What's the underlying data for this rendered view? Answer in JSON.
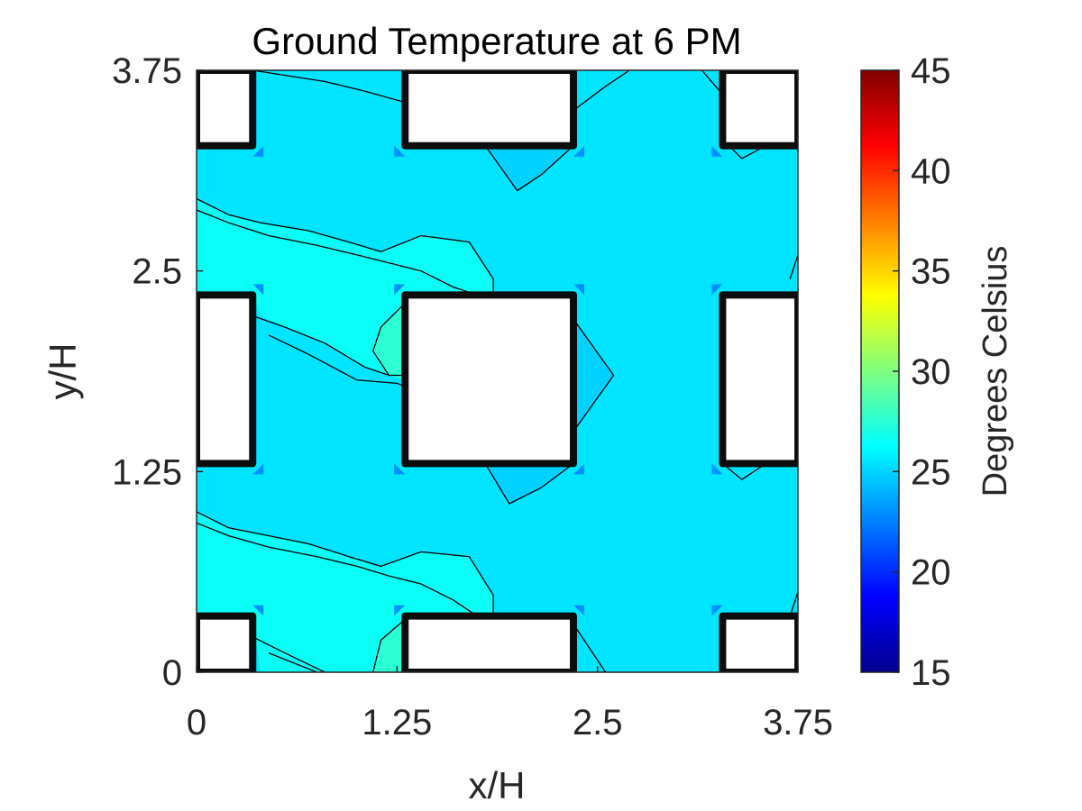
{
  "chart_data": {
    "type": "heatmap",
    "title": "Ground Temperature at 6 PM",
    "xlabel": "x/H",
    "ylabel": "y/H",
    "xlim": [
      0,
      3.75
    ],
    "ylim": [
      0,
      3.75
    ],
    "x_ticks": [
      0,
      1.25,
      2.5,
      3.75
    ],
    "x_tick_labels": [
      "0",
      "1.25",
      "2.5",
      "3.75"
    ],
    "y_ticks": [
      0,
      1.25,
      2.5,
      3.75
    ],
    "y_tick_labels": [
      "0",
      "1.25",
      "2.5",
      "3.75"
    ],
    "colorbar": {
      "label": "Degrees Celsius",
      "range": [
        15,
        45
      ],
      "ticks": [
        15,
        20,
        25,
        30,
        35,
        40,
        45
      ],
      "tick_labels": [
        "15",
        "20",
        "25",
        "30",
        "35",
        "40",
        "45"
      ],
      "colormap": "jet"
    },
    "grid": false,
    "field_levels": {
      "background": 25.5,
      "sunlit_band": 26.5,
      "warm_patch": 27.5,
      "building_corner": 23.0
    },
    "buildings": [
      {
        "x": [
          1.3,
          2.35
        ],
        "y": [
          1.3,
          2.35
        ]
      },
      {
        "x": [
          1.3,
          2.35
        ],
        "y": [
          3.28,
          3.75
        ]
      },
      {
        "x": [
          1.3,
          2.35
        ],
        "y": [
          0.0,
          0.35
        ]
      },
      {
        "x": [
          0.0,
          0.35
        ],
        "y": [
          1.3,
          2.35
        ]
      },
      {
        "x": [
          0.0,
          0.35
        ],
        "y": [
          3.28,
          3.75
        ]
      },
      {
        "x": [
          0.0,
          0.35
        ],
        "y": [
          0.0,
          0.35
        ]
      },
      {
        "x": [
          3.28,
          3.75
        ],
        "y": [
          1.3,
          2.35
        ]
      },
      {
        "x": [
          3.28,
          3.75
        ],
        "y": [
          3.28,
          3.75
        ]
      },
      {
        "x": [
          3.28,
          3.75
        ],
        "y": [
          0.0,
          0.35
        ]
      }
    ],
    "cool_wakes": [
      [
        [
          1.8,
          3.28
        ],
        [
          2.0,
          3.0
        ],
        [
          2.15,
          3.1
        ],
        [
          2.35,
          3.28
        ]
      ],
      [
        [
          1.8,
          1.3
        ],
        [
          1.95,
          1.05
        ],
        [
          2.15,
          1.15
        ],
        [
          2.35,
          1.3
        ]
      ],
      [
        [
          2.35,
          2.2
        ],
        [
          2.6,
          1.85
        ],
        [
          2.35,
          1.5
        ]
      ],
      [
        [
          3.15,
          3.75
        ],
        [
          3.28,
          3.6
        ]
      ],
      [
        [
          3.75,
          2.6
        ],
        [
          3.7,
          2.45
        ]
      ],
      [
        [
          3.75,
          0.5
        ],
        [
          3.7,
          0.35
        ]
      ]
    ],
    "sunlit_bands": [
      [
        [
          0,
          2.95
        ],
        [
          0.2,
          2.85
        ],
        [
          0.4,
          2.8
        ],
        [
          0.7,
          2.75
        ],
        [
          0.95,
          2.68
        ],
        [
          1.15,
          2.62
        ],
        [
          1.4,
          2.72
        ],
        [
          1.7,
          2.68
        ],
        [
          1.85,
          2.45
        ],
        [
          1.85,
          2.35
        ],
        [
          1.3,
          2.35
        ],
        [
          1.2,
          1.85
        ],
        [
          1.05,
          1.9
        ],
        [
          0.8,
          2.05
        ],
        [
          0.55,
          2.15
        ],
        [
          0.4,
          2.22
        ],
        [
          0.35,
          2.35
        ],
        [
          0,
          2.35
        ]
      ],
      [
        [
          0,
          1.0
        ],
        [
          0.2,
          0.9
        ],
        [
          0.4,
          0.86
        ],
        [
          0.7,
          0.8
        ],
        [
          0.95,
          0.72
        ],
        [
          1.15,
          0.66
        ],
        [
          1.4,
          0.75
        ],
        [
          1.7,
          0.72
        ],
        [
          1.85,
          0.48
        ],
        [
          1.85,
          0.35
        ],
        [
          1.3,
          0.35
        ],
        [
          1.2,
          0.0
        ],
        [
          0.4,
          0.0
        ],
        [
          0.35,
          0.35
        ],
        [
          0,
          0.35
        ]
      ]
    ],
    "warm_patches": [
      [
        [
          1.3,
          2.3
        ],
        [
          1.15,
          2.15
        ],
        [
          1.1,
          2.0
        ],
        [
          1.2,
          1.85
        ],
        [
          1.3,
          1.82
        ]
      ],
      [
        [
          1.3,
          0.33
        ],
        [
          1.15,
          0.2
        ],
        [
          1.1,
          0.0
        ],
        [
          1.3,
          0.0
        ]
      ]
    ],
    "contour_lines": [
      [
        [
          0,
          2.95
        ],
        [
          0.2,
          2.85
        ],
        [
          0.4,
          2.8
        ],
        [
          0.7,
          2.75
        ],
        [
          0.95,
          2.68
        ],
        [
          1.15,
          2.62
        ],
        [
          1.4,
          2.72
        ],
        [
          1.7,
          2.68
        ],
        [
          1.85,
          2.45
        ],
        [
          1.85,
          2.35
        ]
      ],
      [
        [
          0,
          2.88
        ],
        [
          0.2,
          2.8
        ],
        [
          0.45,
          2.72
        ],
        [
          0.75,
          2.66
        ],
        [
          1.0,
          2.6
        ],
        [
          1.2,
          2.55
        ],
        [
          1.4,
          2.5
        ],
        [
          1.6,
          2.4
        ],
        [
          1.75,
          2.35
        ]
      ],
      [
        [
          0.35,
          2.22
        ],
        [
          0.55,
          2.15
        ],
        [
          0.8,
          2.05
        ],
        [
          1.05,
          1.9
        ],
        [
          1.2,
          1.85
        ],
        [
          1.3,
          1.85
        ]
      ],
      [
        [
          0.45,
          2.1
        ],
        [
          0.7,
          1.98
        ],
        [
          1.0,
          1.82
        ],
        [
          1.25,
          1.8
        ],
        [
          1.3,
          1.78
        ]
      ],
      [
        [
          1.3,
          2.3
        ],
        [
          1.15,
          2.15
        ],
        [
          1.1,
          2.0
        ],
        [
          1.2,
          1.85
        ]
      ],
      [
        [
          0,
          1.0
        ],
        [
          0.2,
          0.9
        ],
        [
          0.4,
          0.86
        ],
        [
          0.7,
          0.8
        ],
        [
          0.95,
          0.72
        ],
        [
          1.15,
          0.66
        ],
        [
          1.4,
          0.75
        ],
        [
          1.7,
          0.72
        ],
        [
          1.85,
          0.48
        ],
        [
          1.85,
          0.35
        ]
      ],
      [
        [
          0,
          0.93
        ],
        [
          0.2,
          0.85
        ],
        [
          0.45,
          0.78
        ],
        [
          0.75,
          0.72
        ],
        [
          1.0,
          0.66
        ],
        [
          1.2,
          0.6
        ],
        [
          1.4,
          0.55
        ],
        [
          1.6,
          0.45
        ],
        [
          1.75,
          0.35
        ]
      ],
      [
        [
          0.35,
          0.22
        ],
        [
          0.55,
          0.12
        ],
        [
          0.8,
          0.0
        ]
      ],
      [
        [
          0.45,
          0.12
        ],
        [
          0.7,
          0.02
        ],
        [
          0.75,
          0.0
        ]
      ],
      [
        [
          1.3,
          0.33
        ],
        [
          1.15,
          0.2
        ],
        [
          1.1,
          0.0
        ]
      ],
      [
        [
          1.8,
          3.28
        ],
        [
          2.0,
          3.0
        ],
        [
          2.15,
          3.1
        ],
        [
          2.35,
          3.28
        ]
      ],
      [
        [
          1.8,
          1.3
        ],
        [
          1.95,
          1.05
        ],
        [
          2.15,
          1.15
        ],
        [
          2.35,
          1.3
        ]
      ],
      [
        [
          2.35,
          2.2
        ],
        [
          2.6,
          1.85
        ],
        [
          2.35,
          1.5
        ]
      ],
      [
        [
          2.35,
          0.3
        ],
        [
          2.55,
          0.0
        ]
      ],
      [
        [
          0.35,
          3.75
        ],
        [
          0.8,
          3.68
        ],
        [
          1.05,
          3.62
        ],
        [
          1.3,
          3.55
        ]
      ],
      [
        [
          2.35,
          3.5
        ],
        [
          2.55,
          3.65
        ],
        [
          2.7,
          3.75
        ]
      ],
      [
        [
          3.15,
          3.75
        ],
        [
          3.28,
          3.6
        ]
      ],
      [
        [
          3.28,
          3.32
        ],
        [
          3.4,
          3.2
        ],
        [
          3.55,
          3.28
        ]
      ],
      [
        [
          3.28,
          1.3
        ],
        [
          3.4,
          1.2
        ],
        [
          3.55,
          1.3
        ]
      ],
      [
        [
          3.75,
          2.6
        ],
        [
          3.7,
          2.45
        ]
      ],
      [
        [
          3.75,
          0.5
        ],
        [
          3.7,
          0.35
        ]
      ]
    ]
  }
}
